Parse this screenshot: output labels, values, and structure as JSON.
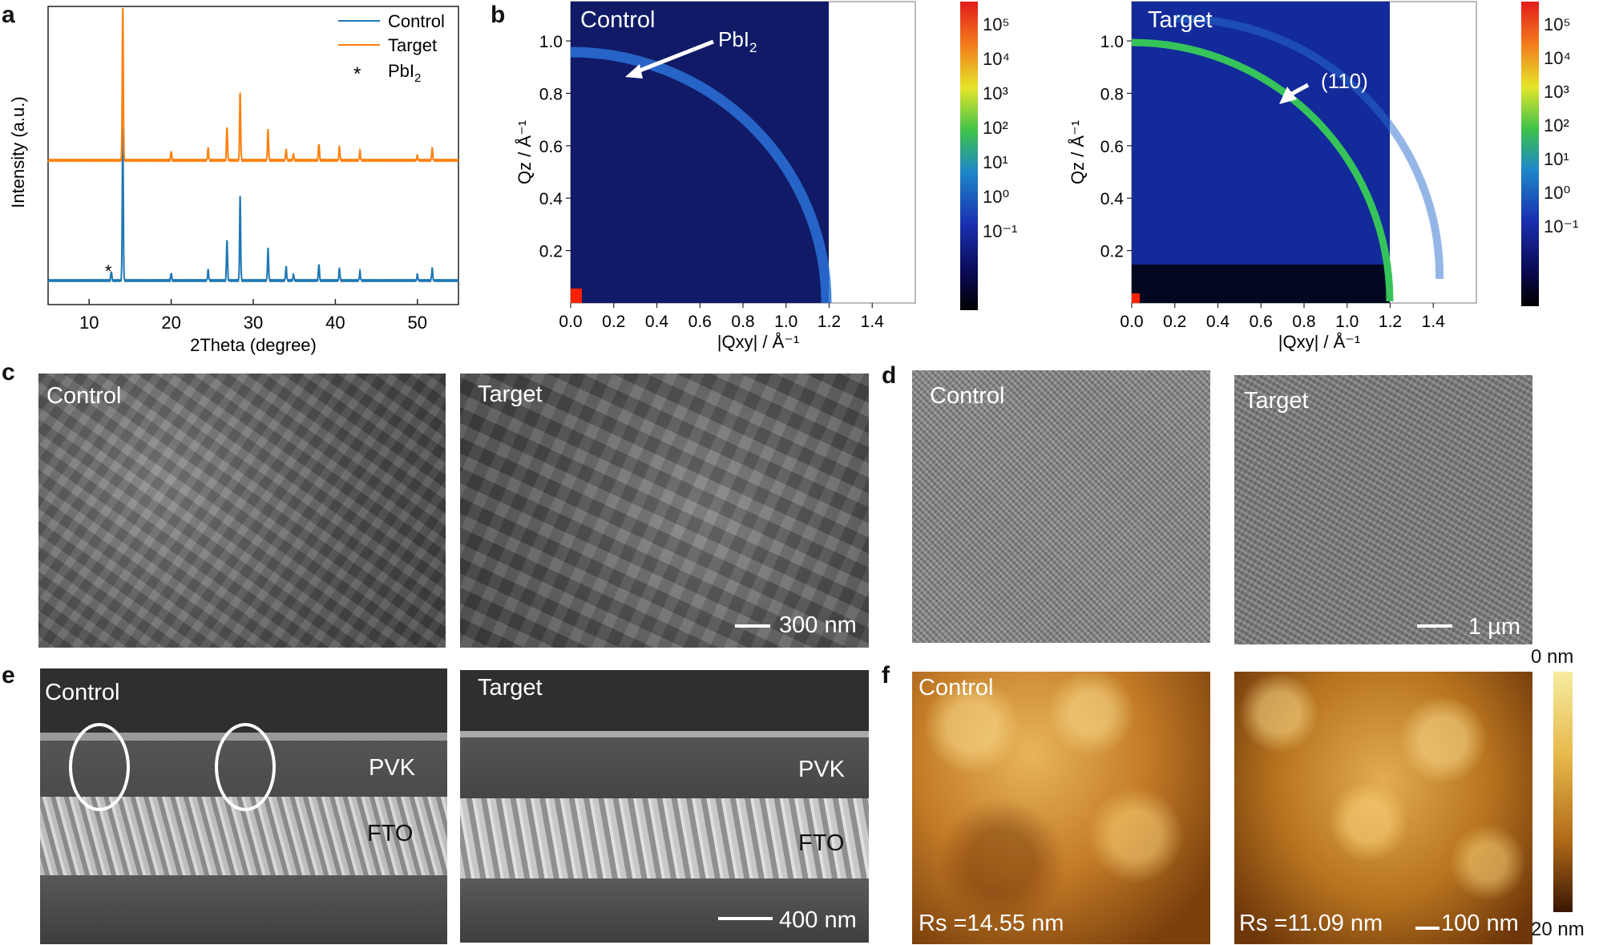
{
  "panels": {
    "a": "a",
    "b": "b",
    "c": "c",
    "d": "d",
    "e": "e",
    "f": "f"
  },
  "chart_data": [
    {
      "type": "line",
      "panel": "a",
      "xlabel": "2Theta (degree)",
      "ylabel": "Intensity (a.u.)",
      "xlim": [
        5,
        55
      ],
      "xticks": [
        10,
        20,
        30,
        40,
        50
      ],
      "legend": [
        "Control",
        "Target",
        "PbI2"
      ],
      "legend_position": "top-right",
      "legend_marker": "*",
      "series": [
        {
          "name": "Control",
          "color": "#1f77b4",
          "baseline": 0.0,
          "peaks": [
            [
              12.7,
              0.06
            ],
            [
              14.1,
              1.0
            ],
            [
              20.0,
              0.05
            ],
            [
              24.5,
              0.07
            ],
            [
              26.8,
              0.27
            ],
            [
              28.4,
              0.55
            ],
            [
              31.8,
              0.21
            ],
            [
              34.0,
              0.09
            ],
            [
              34.9,
              0.04
            ],
            [
              38.0,
              0.11
            ],
            [
              40.5,
              0.08
            ],
            [
              43.0,
              0.06
            ],
            [
              50.0,
              0.04
            ],
            [
              51.8,
              0.08
            ]
          ]
        },
        {
          "name": "Target",
          "color": "#ff7f0e",
          "baseline": 0.0,
          "peaks": [
            [
              14.1,
              1.0
            ],
            [
              20.0,
              0.06
            ],
            [
              24.5,
              0.08
            ],
            [
              26.8,
              0.22
            ],
            [
              28.4,
              0.44
            ],
            [
              31.8,
              0.2
            ],
            [
              34.0,
              0.07
            ],
            [
              34.9,
              0.04
            ],
            [
              38.0,
              0.11
            ],
            [
              40.5,
              0.09
            ],
            [
              43.0,
              0.06
            ],
            [
              50.0,
              0.03
            ],
            [
              51.8,
              0.08
            ]
          ]
        }
      ],
      "annotation": "*"
    },
    {
      "type": "heatmap",
      "panel": "b-left",
      "title": "Control",
      "xlabel": "|Qxy| / Å⁻¹",
      "ylabel": "Qz / Å⁻¹",
      "xlim": [
        0,
        1.6
      ],
      "ylim": [
        0,
        1.15
      ],
      "xticks": [
        "0.0",
        "0.2",
        "0.4",
        "0.6",
        "0.8",
        "1.0",
        "1.2",
        "1.4"
      ],
      "yticks": [
        "0.2",
        "0.4",
        "0.6",
        "0.8",
        "1.0"
      ],
      "ring_q": [
        1.0
      ],
      "annotation": "PbI",
      "annotation_sub": "2",
      "colorbar": [
        "10⁵",
        "10⁴",
        "10³",
        "10²",
        "10¹",
        "10⁰",
        "10⁻¹"
      ]
    },
    {
      "type": "heatmap",
      "panel": "b-right",
      "title": "Target",
      "xlabel": "|Qxy| / Å⁻¹",
      "ylabel": "Qz / Å⁻¹",
      "xlim": [
        0,
        1.6
      ],
      "ylim": [
        0,
        1.15
      ],
      "xticks": [
        "0.0",
        "0.2",
        "0.4",
        "0.6",
        "0.8",
        "1.0",
        "1.2",
        "1.4"
      ],
      "yticks": [
        "0.2",
        "0.4",
        "0.6",
        "0.8",
        "1.0"
      ],
      "ring_q": [
        1.0
      ],
      "annotation": "(110)",
      "colorbar": [
        "10⁵",
        "10⁴",
        "10³",
        "10²",
        "10¹",
        "10⁰",
        "10⁻¹"
      ]
    }
  ],
  "c": {
    "left": "Control",
    "right": "Target",
    "scalebar": "300 nm"
  },
  "d": {
    "left": "Control",
    "right": "Target",
    "scalebar": "1 µm"
  },
  "e": {
    "left": "Control",
    "right": "Target",
    "pvk": "PVK",
    "fto": "FTO",
    "scalebar": "400 nm"
  },
  "f": {
    "left": "Control",
    "right": "Target",
    "rs_left": "Rs =14.55 nm",
    "rs_right": "Rs =11.09 nm",
    "scalebar": "100 nm",
    "cbar_top": "0 nm",
    "cbar_bottom": "20 nm"
  }
}
